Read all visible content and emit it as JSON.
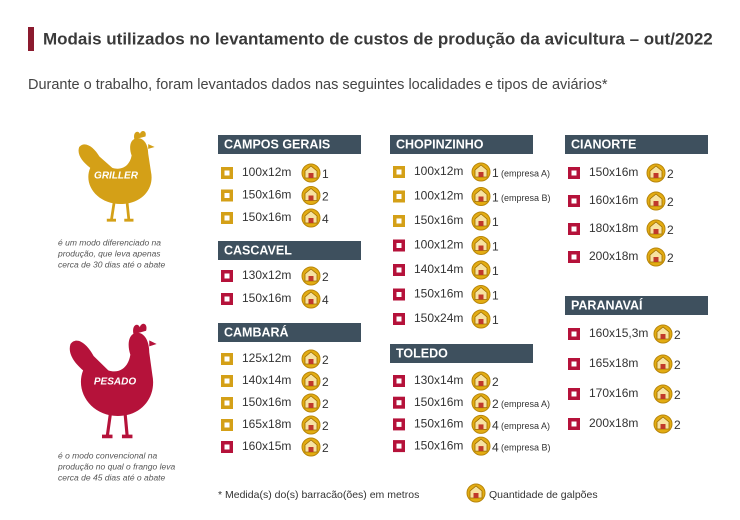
{
  "header": {
    "title": "Modais utilizados no levantamento de custos de produção da avicultura – out/2022",
    "subtitle": "Durante o trabalho, foram levantados dados nas seguintes localidades e tipos de aviários*"
  },
  "modals": [
    {
      "label": "GRILLER",
      "color": "#d4a017",
      "description": [
        "é um modo diferenciado na",
        "produção, que leva apenas",
        "cerca de 30 dias até o abate"
      ]
    },
    {
      "label": "PESADO",
      "color": "#b5123a",
      "description": [
        "é o modo convencional na",
        "produção no qual o frango leva",
        "cerca de 45 dias até o abate"
      ]
    }
  ],
  "groups": [
    {
      "name": "CAMPOS GERAIS",
      "items": [
        {
          "size": "100x12m",
          "count": 1,
          "modal": 0
        },
        {
          "size": "150x16m",
          "count": 2,
          "modal": 0
        },
        {
          "size": "150x16m",
          "count": 4,
          "modal": 0
        }
      ]
    },
    {
      "name": "CASCAVEL",
      "items": [
        {
          "size": "130x12m",
          "count": 2,
          "modal": 1
        },
        {
          "size": "150x16m",
          "count": 4,
          "modal": 1
        }
      ]
    },
    {
      "name": "CAMBARÁ",
      "items": [
        {
          "size": "125x12m",
          "count": 2,
          "modal": 0
        },
        {
          "size": "140x14m",
          "count": 2,
          "modal": 0
        },
        {
          "size": "150x16m",
          "count": 2,
          "modal": 0
        },
        {
          "size": "165x18m",
          "count": 2,
          "modal": 0
        },
        {
          "size": "160x15m",
          "count": 2,
          "modal": 1
        }
      ]
    },
    {
      "name": "CHOPINZINHO",
      "items": [
        {
          "size": "100x12m",
          "count": 1,
          "modal": 0,
          "note": "(empresa A)"
        },
        {
          "size": "100x12m",
          "count": 1,
          "modal": 0,
          "note": "(empresa B)"
        },
        {
          "size": "150x16m",
          "count": 1,
          "modal": 0
        },
        {
          "size": "100x12m",
          "count": 1,
          "modal": 1
        },
        {
          "size": "140x14m",
          "count": 1,
          "modal": 1
        },
        {
          "size": "150x16m",
          "count": 1,
          "modal": 1
        },
        {
          "size": "150x24m",
          "count": 1,
          "modal": 1
        }
      ]
    },
    {
      "name": "TOLEDO",
      "items": [
        {
          "size": "130x14m",
          "count": 2,
          "modal": 1
        },
        {
          "size": "150x16m",
          "count": 2,
          "modal": 1,
          "note": "(empresa A)"
        },
        {
          "size": "150x16m",
          "count": 4,
          "modal": 1,
          "note": "(empresa A)"
        },
        {
          "size": "150x16m",
          "count": 4,
          "modal": 1,
          "note": "(empresa B)"
        }
      ]
    },
    {
      "name": "CIANORTE",
      "items": [
        {
          "size": "150x16m",
          "count": 2,
          "modal": 1
        },
        {
          "size": "160x16m",
          "count": 2,
          "modal": 1
        },
        {
          "size": "180x18m",
          "count": 2,
          "modal": 1
        },
        {
          "size": "200x18m",
          "count": 2,
          "modal": 1
        }
      ]
    },
    {
      "name": "PARANAVAÍ",
      "items": [
        {
          "size": "160x15,3m",
          "count": 2,
          "modal": 1
        },
        {
          "size": "165x18m",
          "count": 2,
          "modal": 1
        },
        {
          "size": "170x16m",
          "count": 2,
          "modal": 1
        },
        {
          "size": "200x18m",
          "count": 2,
          "modal": 1
        }
      ]
    }
  ],
  "footer": {
    "note": "* Medida(s) do(s) barracão(ões) em metros",
    "legend": "Quantidade de galpões"
  }
}
